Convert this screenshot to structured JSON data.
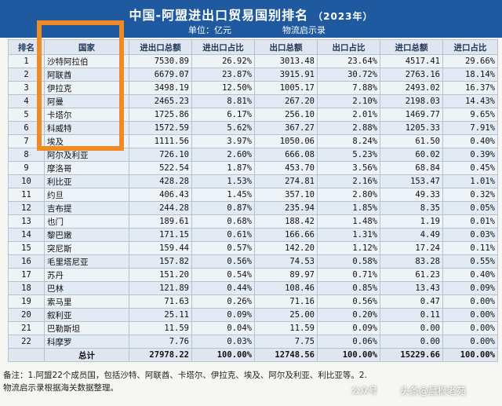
{
  "title": "中国-阿盟进出口贸易国别排名",
  "year": "（2023年）",
  "unit": "单位：亿元",
  "source": "物流启示录",
  "headers": [
    "排名",
    "国家",
    "进出口总额",
    "进出口占比",
    "出口总额",
    "出口占比",
    "进口总额",
    "进口占比"
  ],
  "rows": [
    [
      "1",
      "沙特阿拉伯",
      "7530.89",
      "26.92%",
      "3013.48",
      "23.64%",
      "4517.41",
      "29.66%"
    ],
    [
      "2",
      "阿联酋",
      "6679.07",
      "23.87%",
      "3915.91",
      "30.72%",
      "2763.16",
      "18.14%"
    ],
    [
      "3",
      "伊拉克",
      "3498.19",
      "12.50%",
      "1005.17",
      "7.88%",
      "2493.02",
      "16.37%"
    ],
    [
      "4",
      "阿曼",
      "2465.23",
      "8.81%",
      "267.20",
      "2.10%",
      "2198.03",
      "14.43%"
    ],
    [
      "5",
      "卡塔尔",
      "1725.86",
      "6.17%",
      "256.10",
      "2.01%",
      "1469.77",
      "9.65%"
    ],
    [
      "6",
      "科威特",
      "1572.59",
      "5.62%",
      "367.27",
      "2.88%",
      "1205.33",
      "7.91%"
    ],
    [
      "7",
      "埃及",
      "1111.56",
      "3.97%",
      "1050.06",
      "8.24%",
      "61.50",
      "0.40%"
    ],
    [
      "8",
      "阿尔及利亚",
      "726.10",
      "2.60%",
      "666.08",
      "5.23%",
      "60.02",
      "0.39%"
    ],
    [
      "9",
      "摩洛哥",
      "522.54",
      "1.87%",
      "453.70",
      "3.56%",
      "68.84",
      "0.45%"
    ],
    [
      "10",
      "利比亚",
      "428.28",
      "1.53%",
      "274.81",
      "2.16%",
      "153.47",
      "1.01%"
    ],
    [
      "11",
      "约旦",
      "406.43",
      "1.45%",
      "357.10",
      "2.80%",
      "49.33",
      "0.32%"
    ],
    [
      "12",
      "吉布提",
      "244.28",
      "0.87%",
      "235.94",
      "1.85%",
      "8.35",
      "0.05%"
    ],
    [
      "13",
      "也门",
      "189.61",
      "0.68%",
      "188.42",
      "1.48%",
      "1.19",
      "0.01%"
    ],
    [
      "14",
      "黎巴嫩",
      "171.15",
      "0.61%",
      "166.66",
      "1.31%",
      "4.49",
      "0.03%"
    ],
    [
      "15",
      "突尼斯",
      "159.44",
      "0.57%",
      "142.20",
      "1.12%",
      "17.24",
      "0.11%"
    ],
    [
      "16",
      "毛里塔尼亚",
      "157.82",
      "0.56%",
      "74.53",
      "0.58%",
      "83.28",
      "0.55%"
    ],
    [
      "17",
      "苏丹",
      "151.20",
      "0.54%",
      "89.97",
      "0.71%",
      "61.23",
      "0.40%"
    ],
    [
      "18",
      "巴林",
      "121.89",
      "0.44%",
      "108.46",
      "0.85%",
      "13.43",
      "0.09%"
    ],
    [
      "19",
      "索马里",
      "71.63",
      "0.26%",
      "71.16",
      "0.56%",
      "0.47",
      "0.00%"
    ],
    [
      "20",
      "叙利亚",
      "25.11",
      "0.09%",
      "25.00",
      "0.20%",
      "0.11",
      "0.00%"
    ],
    [
      "21",
      "巴勒斯坦",
      "11.59",
      "0.04%",
      "11.59",
      "0.09%",
      "0.00",
      "0.00%"
    ],
    [
      "22",
      "科摩罗",
      "7.76",
      "0.03%",
      "7.75",
      "0.06%",
      "0.00",
      "0.00%"
    ]
  ],
  "total": [
    "",
    "总计",
    "27978.22",
    "100.00%",
    "12748.56",
    "100.00%",
    "15229.66",
    "100.00%"
  ],
  "note_line1": "备注：1.阿盟22个成员国，包括沙特、阿联酋、卡塔尔、伊拉克、埃及、阿尔及利亚、利比亚等。2.",
  "note_line2": "物流启示录根据海关数据整理。",
  "watermark_1": "公众号",
  "watermark_2": "头条@晨枫老苑",
  "colors": {
    "header_bg": "#1f5aa0",
    "highlight": "#f08a24"
  }
}
